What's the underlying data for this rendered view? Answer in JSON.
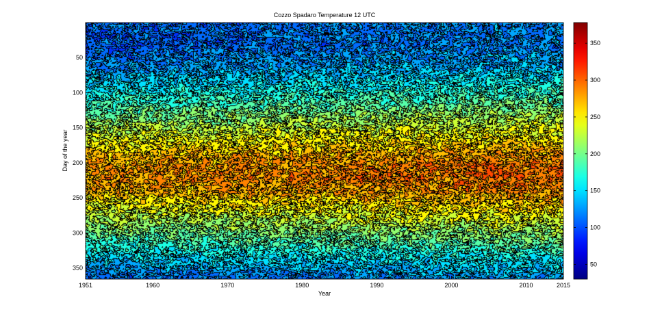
{
  "chart_data": {
    "type": "heatmap",
    "style": "filled-contour",
    "title": "Cozzo Spadaro Temperature 12 UTC",
    "xlabel": "Year",
    "ylabel": "Day of the year",
    "xlim": [
      1951,
      2015
    ],
    "ylim": [
      0,
      366
    ],
    "y_direction": "reversed",
    "x_ticks": [
      1951,
      1960,
      1970,
      1980,
      1990,
      2000,
      2010,
      2015
    ],
    "y_ticks": [
      50,
      100,
      150,
      200,
      250,
      300,
      350
    ],
    "colorbar": {
      "colormap": "jet",
      "range": [
        30,
        378
      ],
      "ticks": [
        50,
        100,
        150,
        200,
        250,
        300,
        350
      ]
    },
    "profile": {
      "day": [
        1,
        30,
        60,
        90,
        120,
        150,
        180,
        200,
        220,
        240,
        260,
        290,
        320,
        350,
        366
      ],
      "value": [
        110,
        105,
        120,
        150,
        185,
        220,
        255,
        275,
        280,
        270,
        245,
        210,
        170,
        130,
        110
      ]
    },
    "trend_per_year": 0.25,
    "contour_levels": [
      80,
      100,
      120,
      140,
      160,
      180,
      200,
      220,
      240,
      260,
      280,
      300,
      320,
      340
    ],
    "grid": false
  }
}
